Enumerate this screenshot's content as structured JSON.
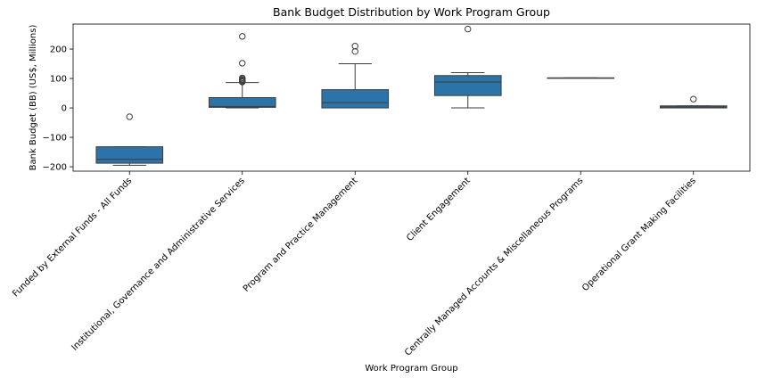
{
  "chart_data": {
    "type": "box",
    "title": "Bank Budget Distribution by Work Program Group",
    "xlabel": "Work Program Group",
    "ylabel": "Bank Budget (BB) (US$, Millions)",
    "ylim": [
      -215,
      285
    ],
    "yticks": [
      -200,
      -100,
      0,
      100,
      200
    ],
    "ytick_labels": [
      "−200",
      "−100",
      "0",
      "100",
      "200"
    ],
    "grid": false,
    "box_color": "#2c73a8",
    "categories": [
      "Funded by External Funds - All Funds",
      "Institutional, Governance and Administrative Services",
      "Program and Practice Management",
      "Client Engagement",
      "Centrally Managed Accounts & Miscellaneous Programs",
      "Operational Grant Making Facilities"
    ],
    "boxes": [
      {
        "whisker_low": -195,
        "q1": -188,
        "median": -175,
        "q3": -132,
        "whisker_high": -132,
        "outliers": [
          -30
        ]
      },
      {
        "whisker_low": 0,
        "q1": 2,
        "median": 5,
        "q3": 35,
        "whisker_high": 86,
        "outliers": [
          88,
          90,
          92,
          95,
          98,
          102,
          152,
          243
        ]
      },
      {
        "whisker_low": 0,
        "q1": 0,
        "median": 18,
        "q3": 62,
        "whisker_high": 150,
        "outliers": [
          192,
          210
        ]
      },
      {
        "whisker_low": 0,
        "q1": 42,
        "median": 88,
        "q3": 110,
        "whisker_high": 120,
        "outliers": [
          268
        ]
      },
      {
        "whisker_low": 102,
        "q1": 102,
        "median": 102,
        "q3": 102,
        "whisker_high": 102,
        "outliers": []
      },
      {
        "whisker_low": 0,
        "q1": 0,
        "median": 3,
        "q3": 7,
        "whisker_high": 7,
        "outliers": [
          30
        ]
      }
    ]
  }
}
